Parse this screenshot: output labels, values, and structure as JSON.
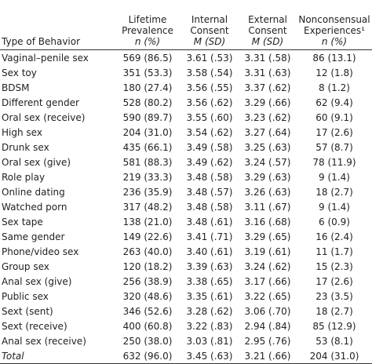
{
  "table": {
    "columns": [
      {
        "title": [],
        "unit": "Type of Behavior"
      },
      {
        "title": [
          "Lifetime",
          "Prevalence"
        ],
        "unit": "n (%)"
      },
      {
        "title": [
          "Internal",
          "Consent"
        ],
        "unit": "M (SD)"
      },
      {
        "title": [
          "External",
          "Consent"
        ],
        "unit": "M (SD)"
      },
      {
        "title": [
          "Nonconsensual",
          "Experiences¹"
        ],
        "unit": "n (%)"
      }
    ],
    "rows": [
      [
        "Vaginal–penile sex",
        "569 (86.5)",
        "3.61 (.53)",
        "3.31 (.58)",
        "86 (13.1)"
      ],
      [
        "Sex toy",
        "351 (53.3)",
        "3.58 (.54)",
        "3.31 (.63)",
        "12 (1.8)"
      ],
      [
        "BDSM",
        "180 (27.4)",
        "3.56 (.55)",
        "3.37 (.62)",
        "8 (1.2)"
      ],
      [
        "Different gender",
        "528 (80.2)",
        "3.56 (.62)",
        "3.29 (.66)",
        "62 (9.4)"
      ],
      [
        "Oral sex (receive)",
        "590 (89.7)",
        "3.55 (.60)",
        "3.23 (.62)",
        "60 (9.1)"
      ],
      [
        "High sex",
        "204 (31.0)",
        "3.54 (.62)",
        "3.27 (.64)",
        "17 (2.6)"
      ],
      [
        "Drunk sex",
        "435 (66.1)",
        "3.49 (.58)",
        "3.25 (.63)",
        "57 (8.7)"
      ],
      [
        "Oral sex (give)",
        "581 (88.3)",
        "3.49 (.62)",
        "3.24 (.57)",
        "78 (11.9)"
      ],
      [
        "Role play",
        "219 (33.3)",
        "3.48 (.58)",
        "3.29 (.63)",
        "9 (1.4)"
      ],
      [
        "Online dating",
        "236 (35.9)",
        "3.48 (.57)",
        "3.26 (.63)",
        "18 (2.7)"
      ],
      [
        "Watched porn",
        "317 (48.2)",
        "3.48 (.58)",
        "3.11 (.67)",
        "9 (1.4)"
      ],
      [
        "Sex tape",
        "138 (21.0)",
        "3.48 (.61)",
        "3.16 (.68)",
        "6 (0.9)"
      ],
      [
        "Same gender",
        "149 (22.6)",
        "3.41 (.71)",
        "3.29 (.65)",
        "16 (2.4)"
      ],
      [
        "Phone/video sex",
        "263 (40.0)",
        "3.40 (.61)",
        "3.19 (.61)",
        "11 (1.7)"
      ],
      [
        "Group sex",
        "120 (18.2)",
        "3.39 (.63)",
        "3.24 (.62)",
        "15 (2.3)"
      ],
      [
        "Anal sex (give)",
        "256 (38.9)",
        "3.38 (.65)",
        "3.17 (.66)",
        "17 (2.6)"
      ],
      [
        "Public sex",
        "320 (48.6)",
        "3.35 (.61)",
        "3.22 (.65)",
        "23 (3.5)"
      ],
      [
        "Sext (sent)",
        "346 (52.6)",
        "3.28 (.62)",
        "3.06 (.70)",
        "18 (2.7)"
      ],
      [
        "Sext (receive)",
        "400 (60.8)",
        "3.22 (.83)",
        "2.94 (.84)",
        "85 (12.9)"
      ],
      [
        "Anal sex (receive)",
        "250 (38.0)",
        "3.03 (.81)",
        "2.95 (.76)",
        "53 (8.1)"
      ]
    ],
    "total": [
      "Total",
      "632 (96.0)",
      "3.45 (.63)",
      "3.21 (.66)",
      "204 (31.0)"
    ]
  }
}
